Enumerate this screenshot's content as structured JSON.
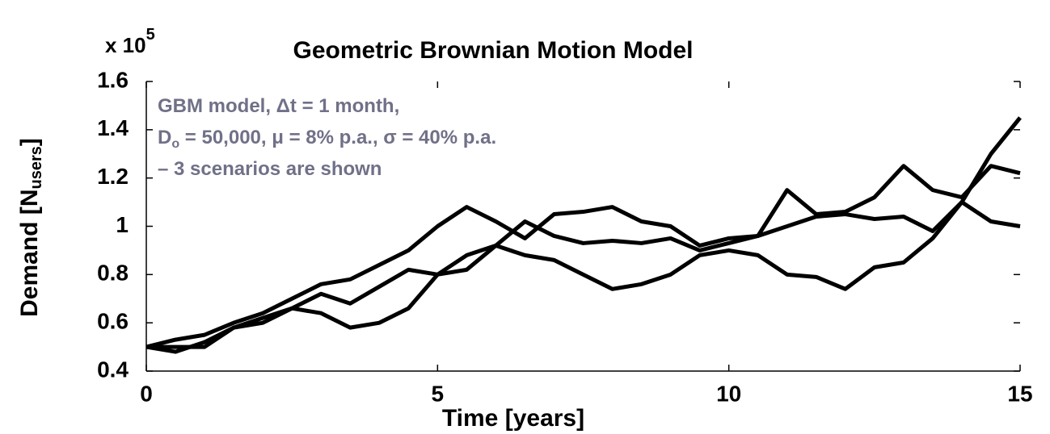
{
  "chart_data": {
    "type": "line",
    "title": "Geometric Brownian Motion Model",
    "multiplier": [
      "x 10",
      "5"
    ],
    "xlabel": "Time [years]",
    "ylabel": [
      "Demand [N",
      "users",
      "]"
    ],
    "annotations": [
      [
        "GBM model, Δt = 1 month,"
      ],
      [
        "D",
        "o",
        " = 50,000, μ = 8% p.a., σ = 40% p.a."
      ],
      [
        "– 3 scenarios are shown"
      ]
    ],
    "annotation_color": "#707088",
    "x": [
      0,
      0.5,
      1,
      1.5,
      2,
      2.5,
      3,
      3.5,
      4,
      4.5,
      5,
      5.5,
      6,
      6.5,
      7,
      7.5,
      8,
      8.5,
      9,
      9.5,
      10,
      10.5,
      11,
      11.5,
      12,
      12.5,
      13,
      13.5,
      14,
      14.5,
      15
    ],
    "series": [
      {
        "color": "#000000",
        "values": [
          0.5,
          0.53,
          0.55,
          0.6,
          0.64,
          0.7,
          0.76,
          0.78,
          0.84,
          0.9,
          1.0,
          1.08,
          1.02,
          0.95,
          1.05,
          1.06,
          1.08,
          1.02,
          1.0,
          0.92,
          0.95,
          0.96,
          1.15,
          1.05,
          1.06,
          1.12,
          1.25,
          1.15,
          1.12,
          1.25,
          1.22
        ]
      },
      {
        "color": "#000000",
        "values": [
          0.5,
          0.48,
          0.52,
          0.58,
          0.62,
          0.66,
          0.72,
          0.68,
          0.75,
          0.82,
          0.8,
          0.88,
          0.92,
          0.88,
          0.86,
          0.8,
          0.74,
          0.76,
          0.8,
          0.88,
          0.9,
          0.88,
          0.8,
          0.79,
          0.74,
          0.83,
          0.85,
          0.95,
          1.1,
          1.3,
          1.45
        ]
      },
      {
        "color": "#000000",
        "values": [
          0.5,
          0.5,
          0.5,
          0.58,
          0.6,
          0.66,
          0.64,
          0.58,
          0.6,
          0.66,
          0.8,
          0.82,
          0.92,
          1.02,
          0.96,
          0.93,
          0.94,
          0.93,
          0.95,
          0.9,
          0.93,
          0.96,
          1.0,
          1.04,
          1.05,
          1.03,
          1.04,
          0.98,
          1.1,
          1.02,
          1.0
        ]
      }
    ],
    "xlim": [
      0,
      15
    ],
    "xticks": [
      0,
      5,
      10,
      15
    ],
    "ylim": [
      0.4,
      1.6
    ],
    "yticks": [
      0.4,
      0.6,
      0.8,
      1,
      1.2,
      1.4,
      1.6
    ]
  }
}
